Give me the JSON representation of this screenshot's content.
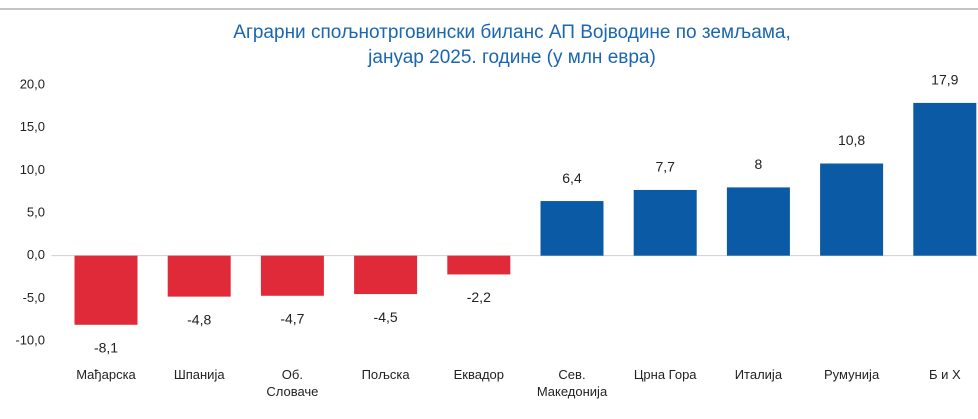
{
  "chart_data": {
    "type": "bar",
    "title": "Аграрни спољнотрговински биланс АП Војводине по земљама,\nјануар 2025. године (у млн евра)",
    "categories": [
      "Мађарска",
      "Шпанија",
      "Об.\nСловаче",
      "Пољска",
      "Еквадор",
      "Сев.\nМакедонија",
      "Црна Гора",
      "Италија",
      "Румунија",
      "Б и Х"
    ],
    "values": [
      -8.1,
      -4.8,
      -4.7,
      -4.5,
      -2.2,
      6.4,
      7.7,
      8,
      10.8,
      17.9
    ],
    "value_labels": [
      "-8,1",
      "-4,8",
      "-4,7",
      "-4,5",
      "-2,2",
      "6,4",
      "7,7",
      "8",
      "10,8",
      "17,9"
    ],
    "color": "#0b5aa6",
    "negative_color": "#e12a39",
    "ylim": [
      -10,
      20
    ],
    "yticks": [
      {
        "value": -10,
        "label": "-10,0"
      },
      {
        "value": -5,
        "label": "-5,0"
      },
      {
        "value": 0,
        "label": "0,0"
      },
      {
        "value": 5,
        "label": "5,0"
      },
      {
        "value": 10,
        "label": "10,0"
      },
      {
        "value": 15,
        "label": "15,0"
      },
      {
        "value": 20,
        "label": "20,0"
      }
    ],
    "grid": false
  }
}
